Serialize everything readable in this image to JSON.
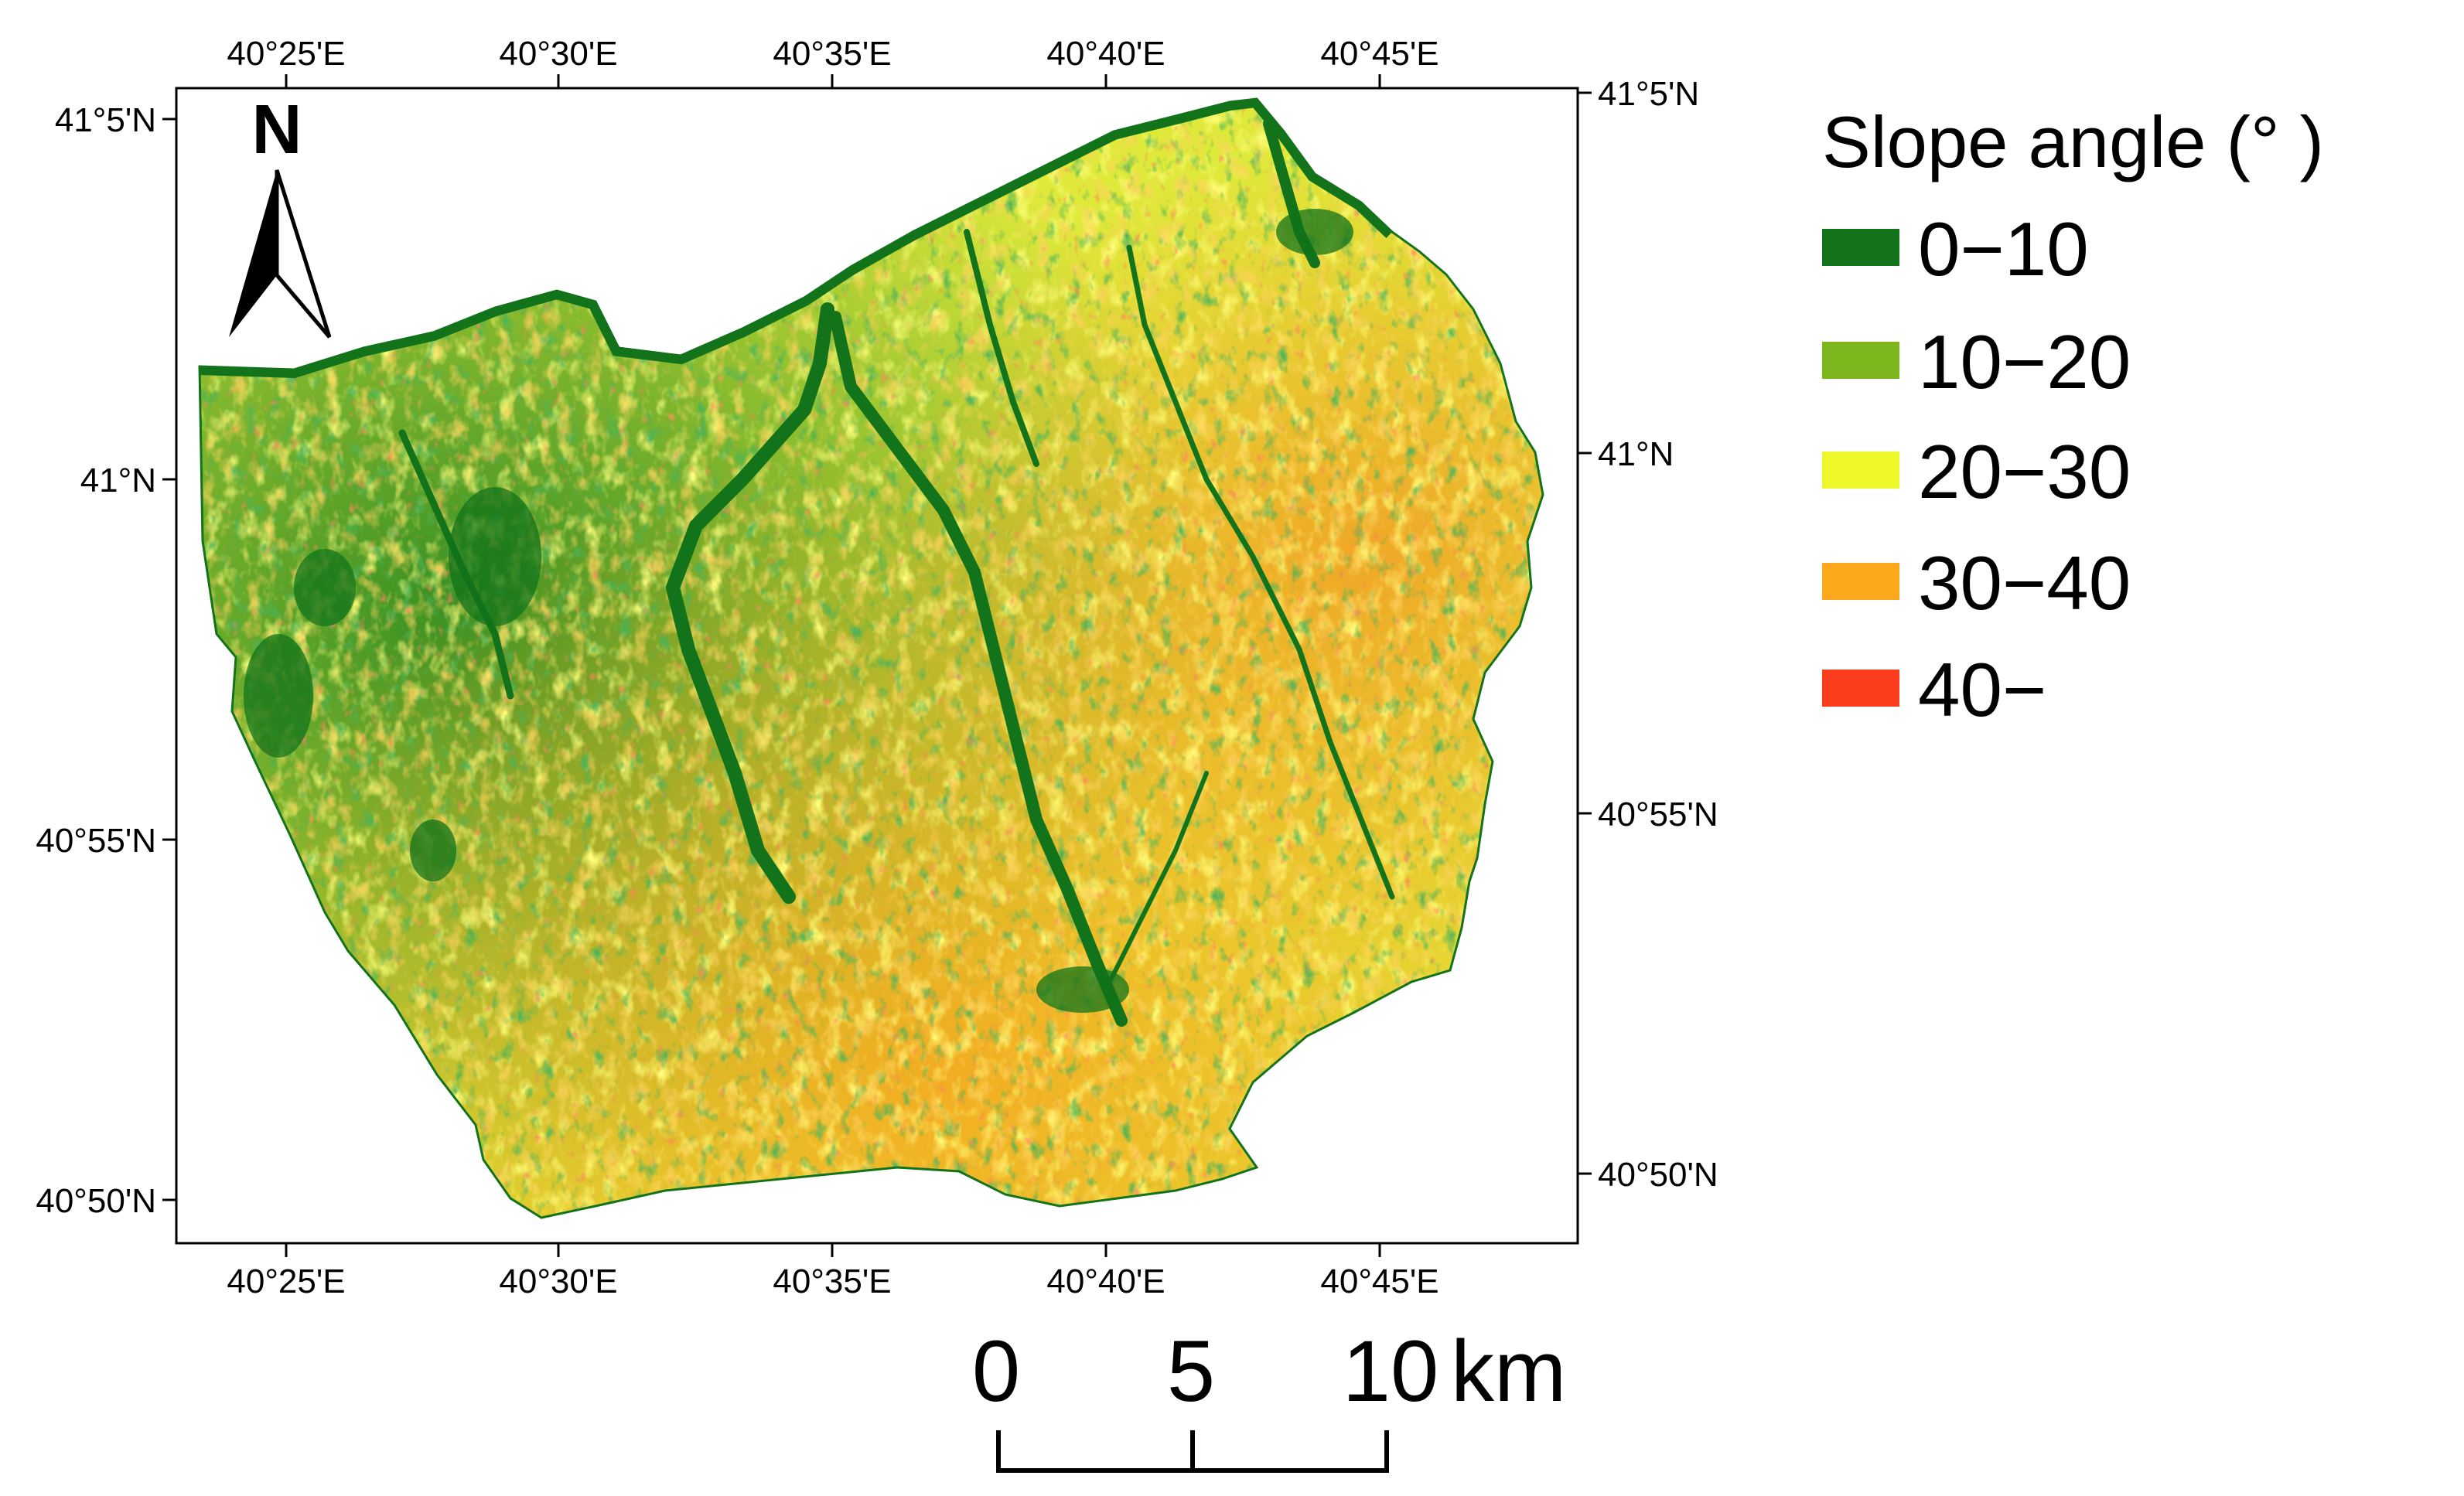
{
  "map": {
    "north_label": "N",
    "top_lon_labels": [
      "40°25'E",
      "40°30'E",
      "40°35'E",
      "40°40'E",
      "40°45'E"
    ],
    "bottom_lon_labels": [
      "40°25'E",
      "40°30'E",
      "40°35'E",
      "40°40'E",
      "40°45'E"
    ],
    "left_lat_labels": [
      "41°5'N",
      "41°N",
      "40°55'N",
      "40°50'N"
    ],
    "right_lat_labels": [
      "41°5'N",
      "41°N",
      "40°55'N",
      "40°50'N"
    ]
  },
  "legend": {
    "title": "Slope angle (°  )",
    "classes": [
      {
        "label": "0−10",
        "color": "#12731a"
      },
      {
        "label": "10−20",
        "color": "#7db51c"
      },
      {
        "label": "20−30",
        "color": "#edf72a"
      },
      {
        "label": "30−40",
        "color": "#fba81d"
      },
      {
        "label": "40−",
        "color": "#fb3d1d"
      }
    ]
  },
  "scale_bar": {
    "labels": [
      "0",
      "5",
      "10"
    ],
    "unit": "km"
  }
}
